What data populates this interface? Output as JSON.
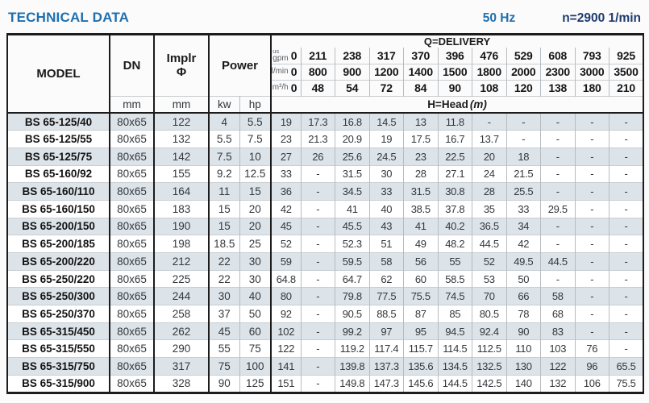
{
  "header": {
    "title": "TECHNICAL DATA",
    "frequency": "50 Hz",
    "speed": "n=2900 1/min"
  },
  "colors": {
    "title_blue": "#1f6fae",
    "speed_navy": "#1e3a6e",
    "row_shade": "#dce3e9",
    "border_dark": "#1c1c1c"
  },
  "table": {
    "model_header": "MODEL",
    "dn_header": "DN",
    "implr_header_line1": "Implr",
    "implr_header_line2": "Φ",
    "power_header": "Power",
    "unit_mm": "mm",
    "unit_kw": "kw",
    "unit_hp": "hp",
    "delivery_title": "Q=DELIVERY",
    "head_label": "H=Head",
    "head_unit": "(m)",
    "delivery_rows": [
      {
        "unit_top": "us",
        "unit": "gpm",
        "zero": "0",
        "values": [
          "211",
          "238",
          "317",
          "370",
          "396",
          "476",
          "529",
          "608",
          "793",
          "925"
        ]
      },
      {
        "unit_top": "",
        "unit": "l/min",
        "zero": "0",
        "values": [
          "800",
          "900",
          "1200",
          "1400",
          "1500",
          "1800",
          "2000",
          "2300",
          "3000",
          "3500"
        ]
      },
      {
        "unit_top": "",
        "unit": "m³/h",
        "zero": "0",
        "values": [
          "48",
          "54",
          "72",
          "84",
          "90",
          "108",
          "120",
          "138",
          "180",
          "210"
        ]
      }
    ],
    "rows": [
      {
        "model": "BS 65-125/40",
        "dn": "80x65",
        "implr": "122",
        "kw": "4",
        "hp": "5.5",
        "heads": [
          "19",
          "17.3",
          "16.8",
          "14.5",
          "13",
          "11.8",
          "-",
          "-",
          "-",
          "-",
          "-"
        ]
      },
      {
        "model": "BS 65-125/55",
        "dn": "80x65",
        "implr": "132",
        "kw": "5.5",
        "hp": "7.5",
        "heads": [
          "23",
          "21.3",
          "20.9",
          "19",
          "17.5",
          "16.7",
          "13.7",
          "-",
          "-",
          "-",
          "-"
        ]
      },
      {
        "model": "BS 65-125/75",
        "dn": "80x65",
        "implr": "142",
        "kw": "7.5",
        "hp": "10",
        "heads": [
          "27",
          "26",
          "25.6",
          "24.5",
          "23",
          "22.5",
          "20",
          "18",
          "-",
          "-",
          "-"
        ]
      },
      {
        "model": "BS 65-160/92",
        "dn": "80x65",
        "implr": "155",
        "kw": "9.2",
        "hp": "12.5",
        "heads": [
          "33",
          "-",
          "31.5",
          "30",
          "28",
          "27.1",
          "24",
          "21.5",
          "-",
          "-",
          "-"
        ]
      },
      {
        "model": "BS 65-160/110",
        "dn": "80x65",
        "implr": "164",
        "kw": "11",
        "hp": "15",
        "heads": [
          "36",
          "-",
          "34.5",
          "33",
          "31.5",
          "30.8",
          "28",
          "25.5",
          "-",
          "-",
          "-"
        ]
      },
      {
        "model": "BS 65-160/150",
        "dn": "80x65",
        "implr": "183",
        "kw": "15",
        "hp": "20",
        "heads": [
          "42",
          "-",
          "41",
          "40",
          "38.5",
          "37.8",
          "35",
          "33",
          "29.5",
          "-",
          "-"
        ]
      },
      {
        "model": "BS 65-200/150",
        "dn": "80x65",
        "implr": "190",
        "kw": "15",
        "hp": "20",
        "heads": [
          "45",
          "-",
          "45.5",
          "43",
          "41",
          "40.2",
          "36.5",
          "34",
          "-",
          "-",
          "-"
        ]
      },
      {
        "model": "BS 65-200/185",
        "dn": "80x65",
        "implr": "198",
        "kw": "18.5",
        "hp": "25",
        "heads": [
          "52",
          "-",
          "52.3",
          "51",
          "49",
          "48.2",
          "44.5",
          "42",
          "-",
          "-",
          "-"
        ]
      },
      {
        "model": "BS 65-200/220",
        "dn": "80x65",
        "implr": "212",
        "kw": "22",
        "hp": "30",
        "heads": [
          "59",
          "-",
          "59.5",
          "58",
          "56",
          "55",
          "52",
          "49.5",
          "44.5",
          "-",
          "-"
        ]
      },
      {
        "model": "BS 65-250/220",
        "dn": "80x65",
        "implr": "225",
        "kw": "22",
        "hp": "30",
        "heads": [
          "64.8",
          "-",
          "64.7",
          "62",
          "60",
          "58.5",
          "53",
          "50",
          "-",
          "-",
          "-"
        ]
      },
      {
        "model": "BS 65-250/300",
        "dn": "80x65",
        "implr": "244",
        "kw": "30",
        "hp": "40",
        "heads": [
          "80",
          "-",
          "79.8",
          "77.5",
          "75.5",
          "74.5",
          "70",
          "66",
          "58",
          "-",
          "-"
        ]
      },
      {
        "model": "BS 65-250/370",
        "dn": "80x65",
        "implr": "258",
        "kw": "37",
        "hp": "50",
        "heads": [
          "92",
          "-",
          "90.5",
          "88.5",
          "87",
          "85",
          "80.5",
          "78",
          "68",
          "-",
          "-"
        ]
      },
      {
        "model": "BS 65-315/450",
        "dn": "80x65",
        "implr": "262",
        "kw": "45",
        "hp": "60",
        "heads": [
          "102",
          "-",
          "99.2",
          "97",
          "95",
          "94.5",
          "92.4",
          "90",
          "83",
          "-",
          "-"
        ]
      },
      {
        "model": "BS 65-315/550",
        "dn": "80x65",
        "implr": "290",
        "kw": "55",
        "hp": "75",
        "heads": [
          "122",
          "-",
          "119.2",
          "117.4",
          "115.7",
          "114.5",
          "112.5",
          "110",
          "103",
          "76",
          "-"
        ]
      },
      {
        "model": "BS 65-315/750",
        "dn": "80x65",
        "implr": "317",
        "kw": "75",
        "hp": "100",
        "heads": [
          "141",
          "-",
          "139.8",
          "137.3",
          "135.6",
          "134.5",
          "132.5",
          "130",
          "122",
          "96",
          "65.5"
        ]
      },
      {
        "model": "BS 65-315/900",
        "dn": "80x65",
        "implr": "328",
        "kw": "90",
        "hp": "125",
        "heads": [
          "151",
          "-",
          "149.8",
          "147.3",
          "145.6",
          "144.5",
          "142.5",
          "140",
          "132",
          "106",
          "75.5"
        ]
      }
    ]
  }
}
